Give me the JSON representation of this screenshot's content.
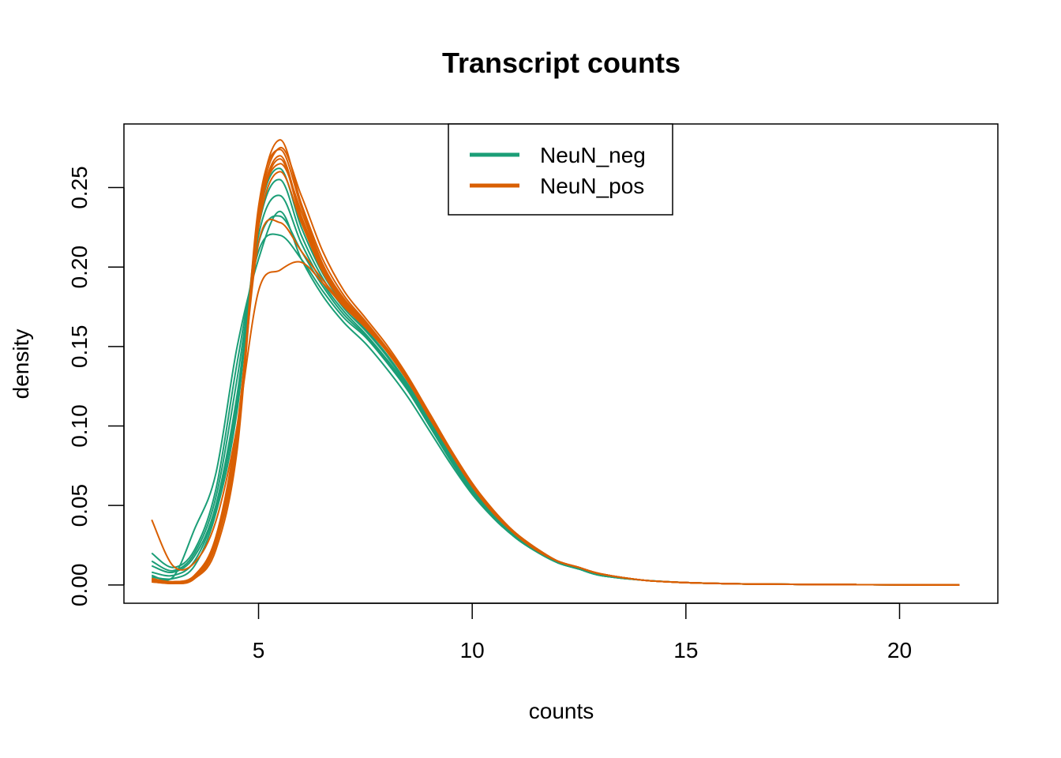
{
  "chart_data": {
    "type": "line",
    "title": "Transcript counts",
    "xlabel": "counts",
    "ylabel": "density",
    "xlim": [
      1.85,
      22.3
    ],
    "ylim": [
      -0.0115,
      0.29
    ],
    "x_ticks": [
      5,
      10,
      15,
      20
    ],
    "x_tick_labels": [
      "5",
      "10",
      "15",
      "20"
    ],
    "y_ticks": [
      0.0,
      0.05,
      0.1,
      0.15,
      0.2,
      0.25
    ],
    "y_tick_labels": [
      "0.00",
      "0.05",
      "0.10",
      "0.15",
      "0.20",
      "0.25"
    ],
    "legend": {
      "position": "top",
      "entries": [
        {
          "label": "NeuN_neg",
          "color": "#1B9E77"
        },
        {
          "label": "NeuN_pos",
          "color": "#D95F02"
        }
      ]
    },
    "colors": {
      "NeuN_neg": "#1B9E77",
      "NeuN_pos": "#D95F02"
    },
    "x": [
      2.5,
      3.0,
      3.5,
      4.0,
      4.5,
      5.0,
      5.5,
      6.0,
      6.5,
      7.0,
      7.5,
      8.0,
      8.5,
      9.0,
      9.5,
      10.0,
      10.5,
      11.0,
      11.5,
      12.0,
      12.5,
      13.0,
      14.0,
      15.0,
      16.0,
      17.0,
      18.0,
      19.0,
      20.0,
      21.4
    ],
    "series": [
      {
        "group": "NeuN_neg",
        "values": [
          0.02,
          0.011,
          0.022,
          0.06,
          0.14,
          0.21,
          0.22,
          0.205,
          0.185,
          0.168,
          0.156,
          0.14,
          0.122,
          0.1,
          0.078,
          0.058,
          0.042,
          0.03,
          0.021,
          0.014,
          0.01,
          0.006,
          0.003,
          0.0015,
          0.0008,
          0.0005,
          0.0003,
          0.0002,
          0.0001,
          0.0
        ]
      },
      {
        "group": "NeuN_neg",
        "values": [
          0.015,
          0.009,
          0.02,
          0.055,
          0.13,
          0.215,
          0.232,
          0.21,
          0.188,
          0.17,
          0.157,
          0.141,
          0.123,
          0.101,
          0.079,
          0.059,
          0.043,
          0.03,
          0.021,
          0.014,
          0.01,
          0.006,
          0.003,
          0.0015,
          0.0008,
          0.0005,
          0.0003,
          0.0002,
          0.0001,
          0.0
        ]
      },
      {
        "group": "NeuN_neg",
        "values": [
          0.012,
          0.008,
          0.018,
          0.05,
          0.12,
          0.22,
          0.245,
          0.215,
          0.19,
          0.172,
          0.158,
          0.142,
          0.124,
          0.102,
          0.08,
          0.06,
          0.043,
          0.03,
          0.021,
          0.014,
          0.01,
          0.006,
          0.003,
          0.0015,
          0.0008,
          0.0005,
          0.0003,
          0.0002,
          0.0001,
          0.0
        ]
      },
      {
        "group": "NeuN_neg",
        "values": [
          0.008,
          0.006,
          0.015,
          0.048,
          0.115,
          0.225,
          0.255,
          0.22,
          0.193,
          0.174,
          0.16,
          0.144,
          0.125,
          0.103,
          0.081,
          0.06,
          0.044,
          0.031,
          0.022,
          0.015,
          0.011,
          0.007,
          0.003,
          0.0015,
          0.0008,
          0.0005,
          0.0003,
          0.0002,
          0.0001,
          0.0
        ]
      },
      {
        "group": "NeuN_neg",
        "values": [
          0.006,
          0.005,
          0.035,
          0.07,
          0.15,
          0.205,
          0.235,
          0.205,
          0.182,
          0.165,
          0.152,
          0.136,
          0.118,
          0.097,
          0.076,
          0.057,
          0.042,
          0.03,
          0.021,
          0.014,
          0.01,
          0.006,
          0.003,
          0.0015,
          0.0008,
          0.0005,
          0.0003,
          0.0002,
          0.0001,
          0.0
        ]
      },
      {
        "group": "NeuN_neg",
        "values": [
          0.005,
          0.004,
          0.012,
          0.045,
          0.11,
          0.23,
          0.262,
          0.225,
          0.196,
          0.176,
          0.161,
          0.145,
          0.126,
          0.104,
          0.082,
          0.061,
          0.045,
          0.032,
          0.023,
          0.015,
          0.011,
          0.007,
          0.003,
          0.0015,
          0.0008,
          0.0005,
          0.0003,
          0.0002,
          0.0001,
          0.0
        ]
      },
      {
        "group": "NeuN_pos",
        "values": [
          0.041,
          0.012,
          0.014,
          0.04,
          0.1,
          0.185,
          0.198,
          0.203,
          0.19,
          0.175,
          0.162,
          0.147,
          0.128,
          0.106,
          0.083,
          0.062,
          0.045,
          0.032,
          0.022,
          0.015,
          0.011,
          0.007,
          0.003,
          0.0015,
          0.0008,
          0.0005,
          0.0003,
          0.0002,
          0.0001,
          0.0
        ]
      },
      {
        "group": "NeuN_pos",
        "values": [
          0.004,
          0.002,
          0.006,
          0.03,
          0.1,
          0.215,
          0.228,
          0.21,
          0.192,
          0.176,
          0.162,
          0.147,
          0.128,
          0.105,
          0.083,
          0.062,
          0.045,
          0.032,
          0.022,
          0.015,
          0.011,
          0.007,
          0.003,
          0.0015,
          0.0008,
          0.0005,
          0.0003,
          0.0002,
          0.0001,
          0.0
        ]
      },
      {
        "group": "NeuN_pos",
        "values": [
          0.003,
          0.002,
          0.005,
          0.028,
          0.095,
          0.23,
          0.27,
          0.232,
          0.2,
          0.18,
          0.165,
          0.148,
          0.129,
          0.107,
          0.084,
          0.063,
          0.046,
          0.033,
          0.023,
          0.015,
          0.011,
          0.007,
          0.003,
          0.0015,
          0.0008,
          0.0005,
          0.0003,
          0.0002,
          0.0001,
          0.0
        ]
      },
      {
        "group": "NeuN_pos",
        "values": [
          0.003,
          0.001,
          0.004,
          0.025,
          0.09,
          0.235,
          0.28,
          0.24,
          0.205,
          0.182,
          0.166,
          0.149,
          0.13,
          0.108,
          0.085,
          0.064,
          0.046,
          0.033,
          0.023,
          0.015,
          0.011,
          0.007,
          0.003,
          0.0015,
          0.0008,
          0.0005,
          0.0003,
          0.0002,
          0.0001,
          0.0
        ]
      },
      {
        "group": "NeuN_pos",
        "values": [
          0.002,
          0.001,
          0.004,
          0.022,
          0.085,
          0.232,
          0.275,
          0.245,
          0.21,
          0.185,
          0.168,
          0.151,
          0.131,
          0.108,
          0.085,
          0.064,
          0.047,
          0.033,
          0.023,
          0.015,
          0.011,
          0.007,
          0.003,
          0.0015,
          0.0008,
          0.0005,
          0.0003,
          0.0002,
          0.0001,
          0.0
        ]
      },
      {
        "group": "NeuN_pos",
        "values": [
          0.003,
          0.002,
          0.005,
          0.027,
          0.092,
          0.228,
          0.268,
          0.23,
          0.198,
          0.178,
          0.164,
          0.148,
          0.129,
          0.107,
          0.084,
          0.063,
          0.046,
          0.032,
          0.022,
          0.015,
          0.011,
          0.007,
          0.003,
          0.0015,
          0.0008,
          0.0005,
          0.0003,
          0.0002,
          0.0001,
          0.0
        ]
      },
      {
        "group": "NeuN_pos",
        "values": [
          0.004,
          0.002,
          0.006,
          0.03,
          0.098,
          0.225,
          0.26,
          0.228,
          0.197,
          0.177,
          0.163,
          0.147,
          0.128,
          0.106,
          0.083,
          0.062,
          0.045,
          0.032,
          0.022,
          0.015,
          0.011,
          0.007,
          0.003,
          0.0015,
          0.0008,
          0.0005,
          0.0003,
          0.0002,
          0.0001,
          0.0
        ]
      },
      {
        "group": "NeuN_pos",
        "values": [
          0.002,
          0.001,
          0.004,
          0.026,
          0.09,
          0.238,
          0.274,
          0.238,
          0.202,
          0.18,
          0.165,
          0.149,
          0.13,
          0.108,
          0.085,
          0.064,
          0.046,
          0.033,
          0.023,
          0.015,
          0.011,
          0.007,
          0.003,
          0.0015,
          0.0008,
          0.0005,
          0.0003,
          0.0002,
          0.0001,
          0.0
        ]
      },
      {
        "group": "NeuN_pos",
        "values": [
          0.003,
          0.001,
          0.005,
          0.028,
          0.094,
          0.23,
          0.265,
          0.235,
          0.2,
          0.179,
          0.165,
          0.148,
          0.129,
          0.107,
          0.084,
          0.063,
          0.046,
          0.033,
          0.023,
          0.015,
          0.011,
          0.007,
          0.003,
          0.0015,
          0.0008,
          0.0005,
          0.0003,
          0.0002,
          0.0001,
          0.0
        ]
      }
    ]
  }
}
